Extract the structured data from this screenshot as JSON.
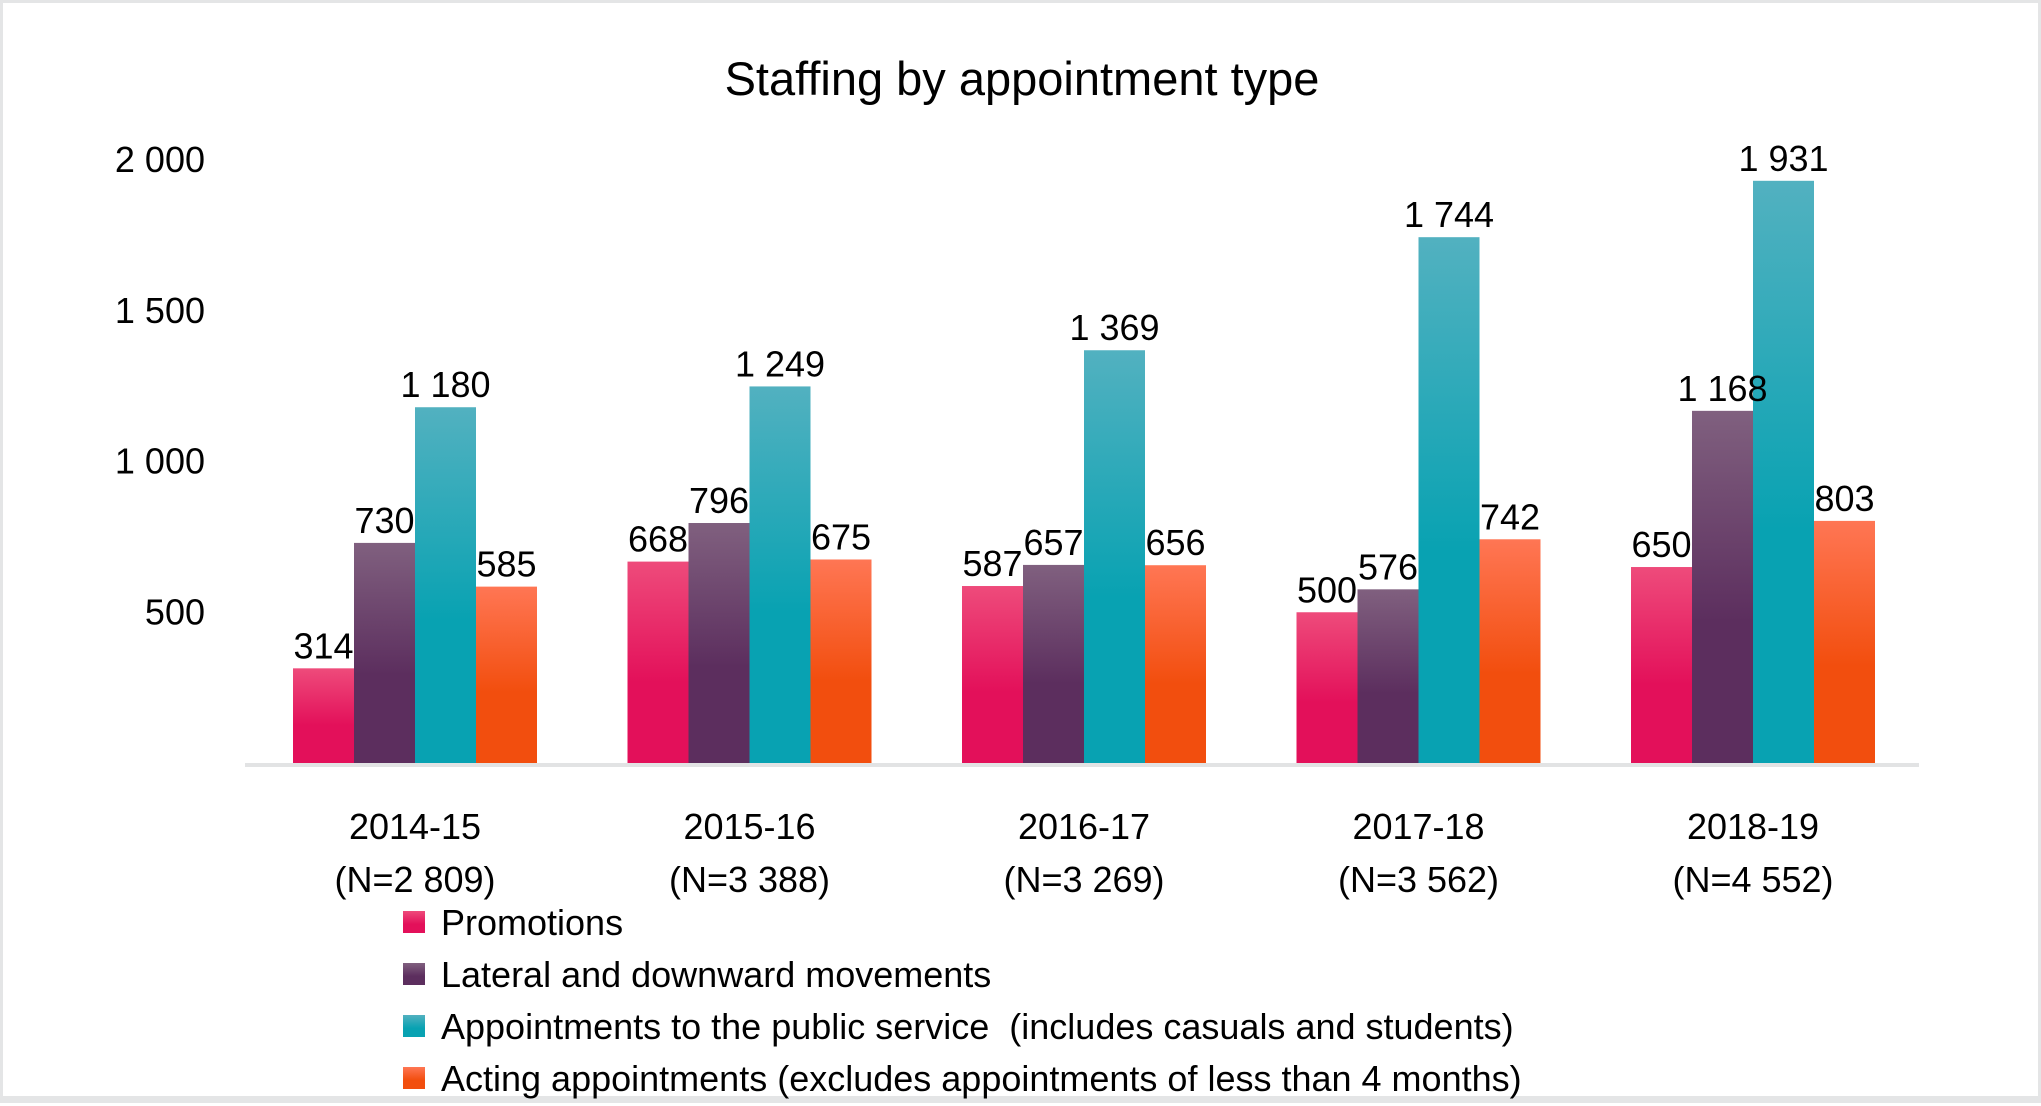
{
  "chart_data": {
    "type": "bar",
    "title": "Staffing by appointment type",
    "xlabel": "",
    "ylabel": "",
    "ylim": [
      0,
      2000
    ],
    "yticks": [
      500,
      1000,
      1500,
      2000
    ],
    "ytick_labels": [
      "500",
      "1 000",
      "1 500",
      "2 000"
    ],
    "grid": false,
    "legend_position": "bottom-left",
    "categories": [
      "2014-15",
      "2015-16",
      "2016-17",
      "2017-18",
      "2018-19"
    ],
    "category_sublabels": [
      "(N=2 809)",
      "(N=3 388)",
      "(N=3 269)",
      "(N=3 562)",
      "(N=4 552)"
    ],
    "series": [
      {
        "name": "Promotions",
        "color_top": "#EE4B7B",
        "color_bottom": "#E3105A",
        "values": [
          314,
          668,
          587,
          500,
          650
        ],
        "labels": [
          "314",
          "668",
          "587",
          "500",
          "650"
        ]
      },
      {
        "name": "Lateral and downward movements",
        "color_top": "#80607F",
        "color_bottom": "#5C2E5E",
        "values": [
          730,
          796,
          657,
          576,
          1168
        ],
        "labels": [
          "730",
          "796",
          "657",
          "576",
          "1 168"
        ]
      },
      {
        "name": "Appointments to the public service  (includes casuals and students)",
        "color_top": "#52B1C0",
        "color_bottom": "#08A2B2",
        "values": [
          1180,
          1249,
          1369,
          1744,
          1931
        ],
        "labels": [
          "1 180",
          "1 249",
          "1 369",
          "1 744",
          "1 931"
        ]
      },
      {
        "name": "Acting appointments (excludes appointments of less than 4 months)",
        "color_top": "#FF7654",
        "color_bottom": "#F24E0E",
        "values": [
          585,
          675,
          656,
          742,
          803
        ],
        "labels": [
          "585",
          "675",
          "656",
          "742",
          "803"
        ]
      }
    ]
  },
  "colors": {
    "axis_line": "#E2E3E4",
    "frame": "#E4E5E6",
    "text": "#000000"
  }
}
